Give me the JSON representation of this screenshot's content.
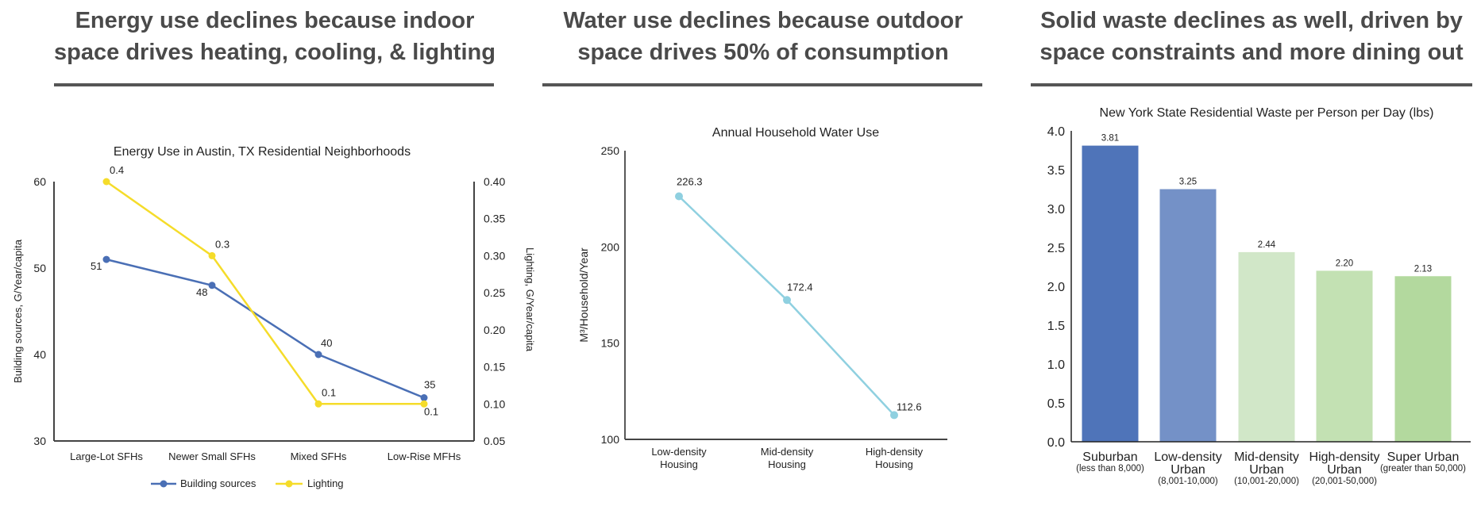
{
  "panels": [
    {
      "title_line1": "Energy use declines because indoor",
      "title_line2": "space drives heating, cooling, & lighting"
    },
    {
      "title_line1": "Water use declines because outdoor",
      "title_line2": "space drives 50% of consumption"
    },
    {
      "title_line1": "Solid waste declines as well, driven by",
      "title_line2": "space constraints and more dining out"
    }
  ],
  "colors": {
    "building_sources": "#4a6fb5",
    "lighting": "#f5dc2a",
    "water": "#8fd0e0",
    "title_text": "#4a4a4a",
    "rule": "#555555"
  },
  "chart_data": [
    {
      "type": "line",
      "title": "Energy Use in Austin, TX Residential Neighborhoods",
      "categories": [
        "Large-Lot SFHs",
        "Newer Small SFHs",
        "Mixed SFHs",
        "Low-Rise MFHs"
      ],
      "series": [
        {
          "name": "Building sources",
          "axis": "left",
          "values": [
            51,
            48,
            40,
            35
          ],
          "labels": [
            "51",
            "48",
            "40",
            "35"
          ]
        },
        {
          "name": "Lighting",
          "axis": "right",
          "values": [
            0.4,
            0.3,
            0.1,
            0.1
          ],
          "labels": [
            "0.4",
            "0.3",
            "0.1",
            "0.1"
          ]
        }
      ],
      "ylabel": "Building sources, G/Year/capita",
      "ylabel_right": "Lighting, G/Year/capita",
      "ylim": [
        30,
        60
      ],
      "yticks": [
        "30",
        "40",
        "50",
        "60"
      ],
      "ylim_right": [
        0.05,
        0.4
      ],
      "yticks_right": [
        "0.05",
        "0.10",
        "0.15",
        "0.20",
        "0.25",
        "0.30",
        "0.35",
        "0.40"
      ],
      "legend": "bottom",
      "grid": false
    },
    {
      "type": "line",
      "title": "Annual Household Water Use",
      "categories": [
        [
          "Low-density",
          "Housing"
        ],
        [
          "Mid-density",
          "Housing"
        ],
        [
          "High-density",
          "Housing"
        ]
      ],
      "series": [
        {
          "name": "Water use",
          "values": [
            226.3,
            172.4,
            112.6
          ],
          "labels": [
            "226.3",
            "172.4",
            "112.6"
          ]
        }
      ],
      "ylabel": "M³/Household/Year",
      "ylim": [
        100,
        250
      ],
      "yticks": [
        "100",
        "150",
        "200",
        "250"
      ],
      "grid": false
    },
    {
      "type": "bar",
      "title": "New York State Residential Waste per Person per Day (lbs)",
      "categories": [
        {
          "lines": [
            "Suburban"
          ],
          "sub": "(less than 8,000)"
        },
        {
          "lines": [
            "Low-density",
            "Urban"
          ],
          "sub": "(8,001-10,000)"
        },
        {
          "lines": [
            "Mid-density",
            "Urban"
          ],
          "sub": "(10,001-20,000)"
        },
        {
          "lines": [
            "High-density",
            "Urban"
          ],
          "sub": "(20,001-50,000)"
        },
        {
          "lines": [
            "Super Urban"
          ],
          "sub": "(greater than 50,000)"
        }
      ],
      "values": [
        3.81,
        3.25,
        2.44,
        2.2,
        2.13
      ],
      "labels": [
        "3.81",
        "3.25",
        "2.44",
        "2.20",
        "2.13"
      ],
      "bar_colors": [
        "#4f74b9",
        "#7491c7",
        "#d1e7c8",
        "#c3e1b3",
        "#b3d99e"
      ],
      "ylim": [
        0,
        4
      ],
      "yticks": [
        "0.0",
        "0.5",
        "1.0",
        "1.5",
        "2.0",
        "2.5",
        "3.0",
        "3.5",
        "4.0"
      ],
      "xlabel": "",
      "ylabel": "",
      "grid": false
    }
  ]
}
